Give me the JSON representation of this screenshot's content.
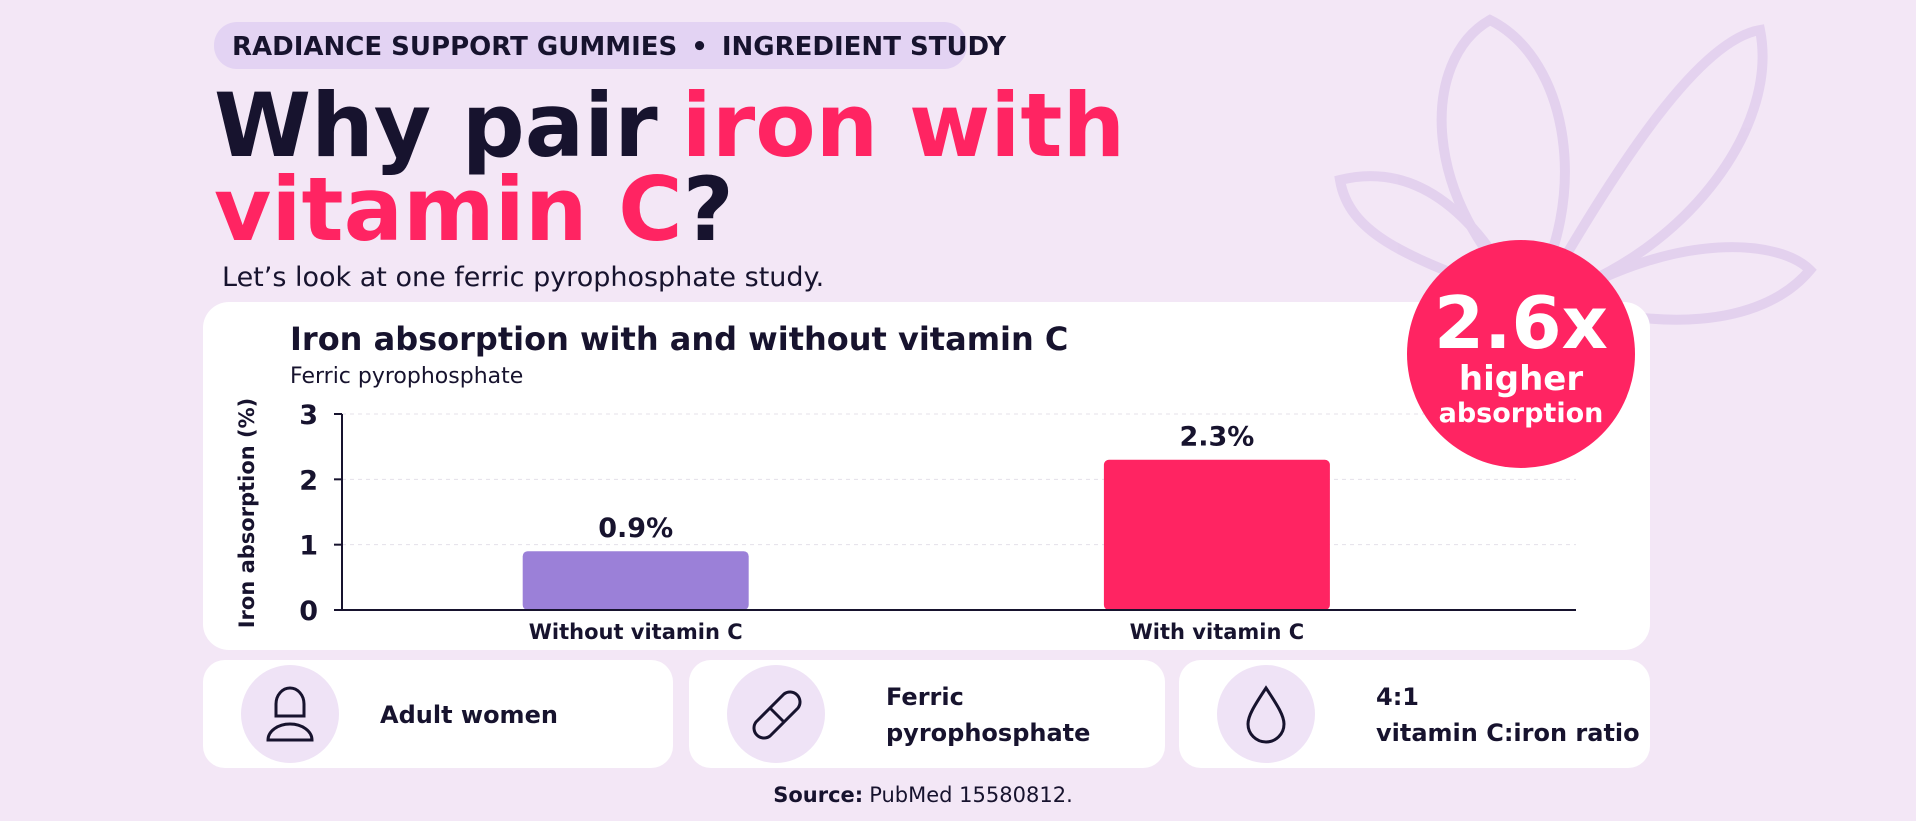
{
  "header": {
    "eyebrow": [
      "RADIANCE SUPPORT GUMMIES",
      "INGREDIENT STUDY"
    ],
    "title_lines": [
      [
        "Why pair",
        "iron with"
      ],
      [
        "vitamin C",
        "?"
      ]
    ],
    "subtitle": "Let’s look at one ferric pyrophosphate study."
  },
  "chart_data": {
    "type": "bar",
    "title": "Iron absorption with and without vitamin C",
    "subtitle": "Ferric pyrophosphate",
    "y_label": "Iron absorption (%)",
    "categories": [
      "Without vitamin C",
      "With vitamin C"
    ],
    "values": [
      0.9,
      2.3
    ],
    "value_labels": [
      "0.9%",
      "2.3%"
    ],
    "colors": [
      "#9b80d8",
      "#ff2462"
    ],
    "ylim": [
      0,
      3
    ],
    "yticks": [
      0,
      1,
      2,
      3
    ],
    "grid": true
  },
  "badge": {
    "headline": "2.6x",
    "lines": [
      "higher",
      "absorption"
    ]
  },
  "facts": [
    {
      "lines": [
        "Adult women"
      ]
    },
    {
      "lines": [
        "Ferric",
        "pyrophosphate"
      ]
    },
    {
      "lines": [
        "4:1",
        "vitamin C:iron ratio"
      ]
    }
  ],
  "source": {
    "label": "Source:",
    "text": "PubMed 15580812."
  }
}
